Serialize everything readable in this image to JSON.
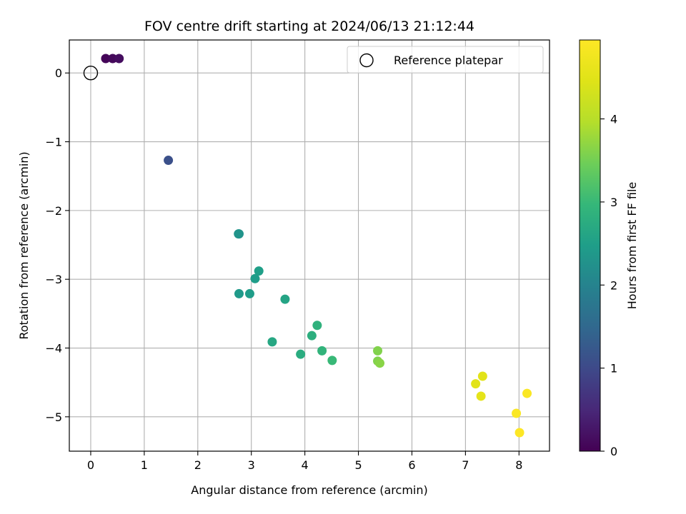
{
  "chart_data": {
    "type": "scatter",
    "title": "FOV centre drift starting at 2024/06/13 21:12:44",
    "xlabel": "Angular distance from reference (arcmin)",
    "ylabel": "Rotation from reference (arcmin)",
    "xlim": [
      -0.4,
      8.57
    ],
    "ylim": [
      -5.5,
      0.48
    ],
    "xticks": [
      0,
      1,
      2,
      3,
      4,
      5,
      6,
      7,
      8
    ],
    "yticks": [
      0,
      -1,
      -2,
      -3,
      -4,
      -5
    ],
    "xtick_labels": [
      "0",
      "1",
      "2",
      "3",
      "4",
      "5",
      "6",
      "7",
      "8"
    ],
    "ytick_labels": [
      "0",
      "−1",
      "−2",
      "−3",
      "−4",
      "−5"
    ],
    "grid": true,
    "legend": {
      "position": "upper right",
      "entries": [
        {
          "label": "Reference platepar",
          "marker": "open-circle"
        }
      ]
    },
    "reference_point": {
      "x": 0.0,
      "y": 0.0
    },
    "colorbar": {
      "label": "Hours from first FF file",
      "colormap": "viridis",
      "range": [
        0,
        4.95
      ],
      "ticks": [
        0,
        1,
        2,
        3,
        4
      ],
      "tick_labels": [
        "0",
        "1",
        "2",
        "3",
        "4"
      ]
    },
    "series": [
      {
        "points": [
          {
            "x": 0.28,
            "y": 0.21,
            "c": 0.05
          },
          {
            "x": 0.41,
            "y": 0.21,
            "c": 0.1
          },
          {
            "x": 0.53,
            "y": 0.21,
            "c": 0.15
          },
          {
            "x": 1.45,
            "y": -1.27,
            "c": 1.1
          },
          {
            "x": 2.76,
            "y": -2.34,
            "c": 2.3
          },
          {
            "x": 2.77,
            "y": -2.34,
            "c": 2.3
          },
          {
            "x": 3.14,
            "y": -2.88,
            "c": 2.5
          },
          {
            "x": 3.07,
            "y": -2.99,
            "c": 2.45
          },
          {
            "x": 2.77,
            "y": -3.21,
            "c": 2.4
          },
          {
            "x": 2.97,
            "y": -3.21,
            "c": 2.45
          },
          {
            "x": 3.63,
            "y": -3.29,
            "c": 2.6
          },
          {
            "x": 4.23,
            "y": -3.67,
            "c": 2.85
          },
          {
            "x": 4.13,
            "y": -3.82,
            "c": 2.8
          },
          {
            "x": 3.39,
            "y": -3.91,
            "c": 2.65
          },
          {
            "x": 4.32,
            "y": -4.04,
            "c": 2.9
          },
          {
            "x": 3.92,
            "y": -4.09,
            "c": 2.75
          },
          {
            "x": 4.51,
            "y": -4.18,
            "c": 3.0
          },
          {
            "x": 5.36,
            "y": -4.04,
            "c": 3.6
          },
          {
            "x": 5.36,
            "y": -4.19,
            "c": 3.6
          },
          {
            "x": 5.4,
            "y": -4.22,
            "c": 3.65
          },
          {
            "x": 7.32,
            "y": -4.41,
            "c": 4.5
          },
          {
            "x": 7.19,
            "y": -4.52,
            "c": 4.5
          },
          {
            "x": 7.29,
            "y": -4.7,
            "c": 4.55
          },
          {
            "x": 8.15,
            "y": -4.66,
            "c": 4.9
          },
          {
            "x": 7.95,
            "y": -4.95,
            "c": 4.9
          },
          {
            "x": 8.01,
            "y": -5.23,
            "c": 4.95
          }
        ]
      }
    ]
  }
}
